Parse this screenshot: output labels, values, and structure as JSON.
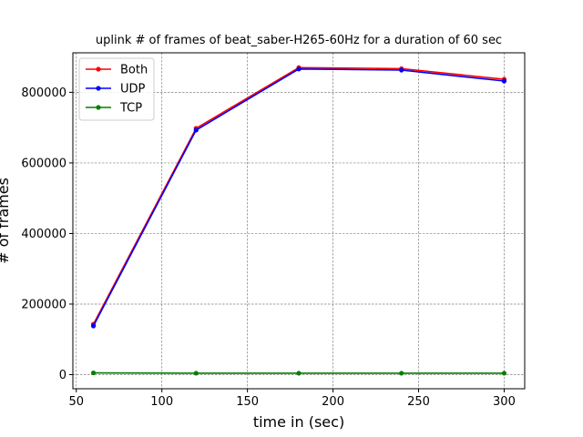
{
  "chart_data": {
    "type": "line",
    "title": "uplink # of frames of beat_saber-H265-60Hz for a duration of 60 sec",
    "xlabel": "time in (sec)",
    "ylabel": "# of frames",
    "x": [
      60,
      120,
      180,
      240,
      300
    ],
    "xlim": [
      48,
      312
    ],
    "ylim": [
      -40000,
      912000
    ],
    "xticks": [
      50,
      100,
      150,
      200,
      250,
      300
    ],
    "yticks": [
      0,
      200000,
      400000,
      600000,
      800000
    ],
    "grid": true,
    "legend_position": "top-left",
    "series": [
      {
        "name": "Both",
        "color": "#ff0000",
        "values": [
          143000,
          698000,
          870000,
          867000,
          837000
        ]
      },
      {
        "name": "UDP",
        "color": "#0000ff",
        "values": [
          138000,
          693000,
          866000,
          863000,
          832000
        ]
      },
      {
        "name": "TCP",
        "color": "#008000",
        "values": [
          5000,
          4000,
          4000,
          4000,
          4000
        ]
      }
    ]
  }
}
